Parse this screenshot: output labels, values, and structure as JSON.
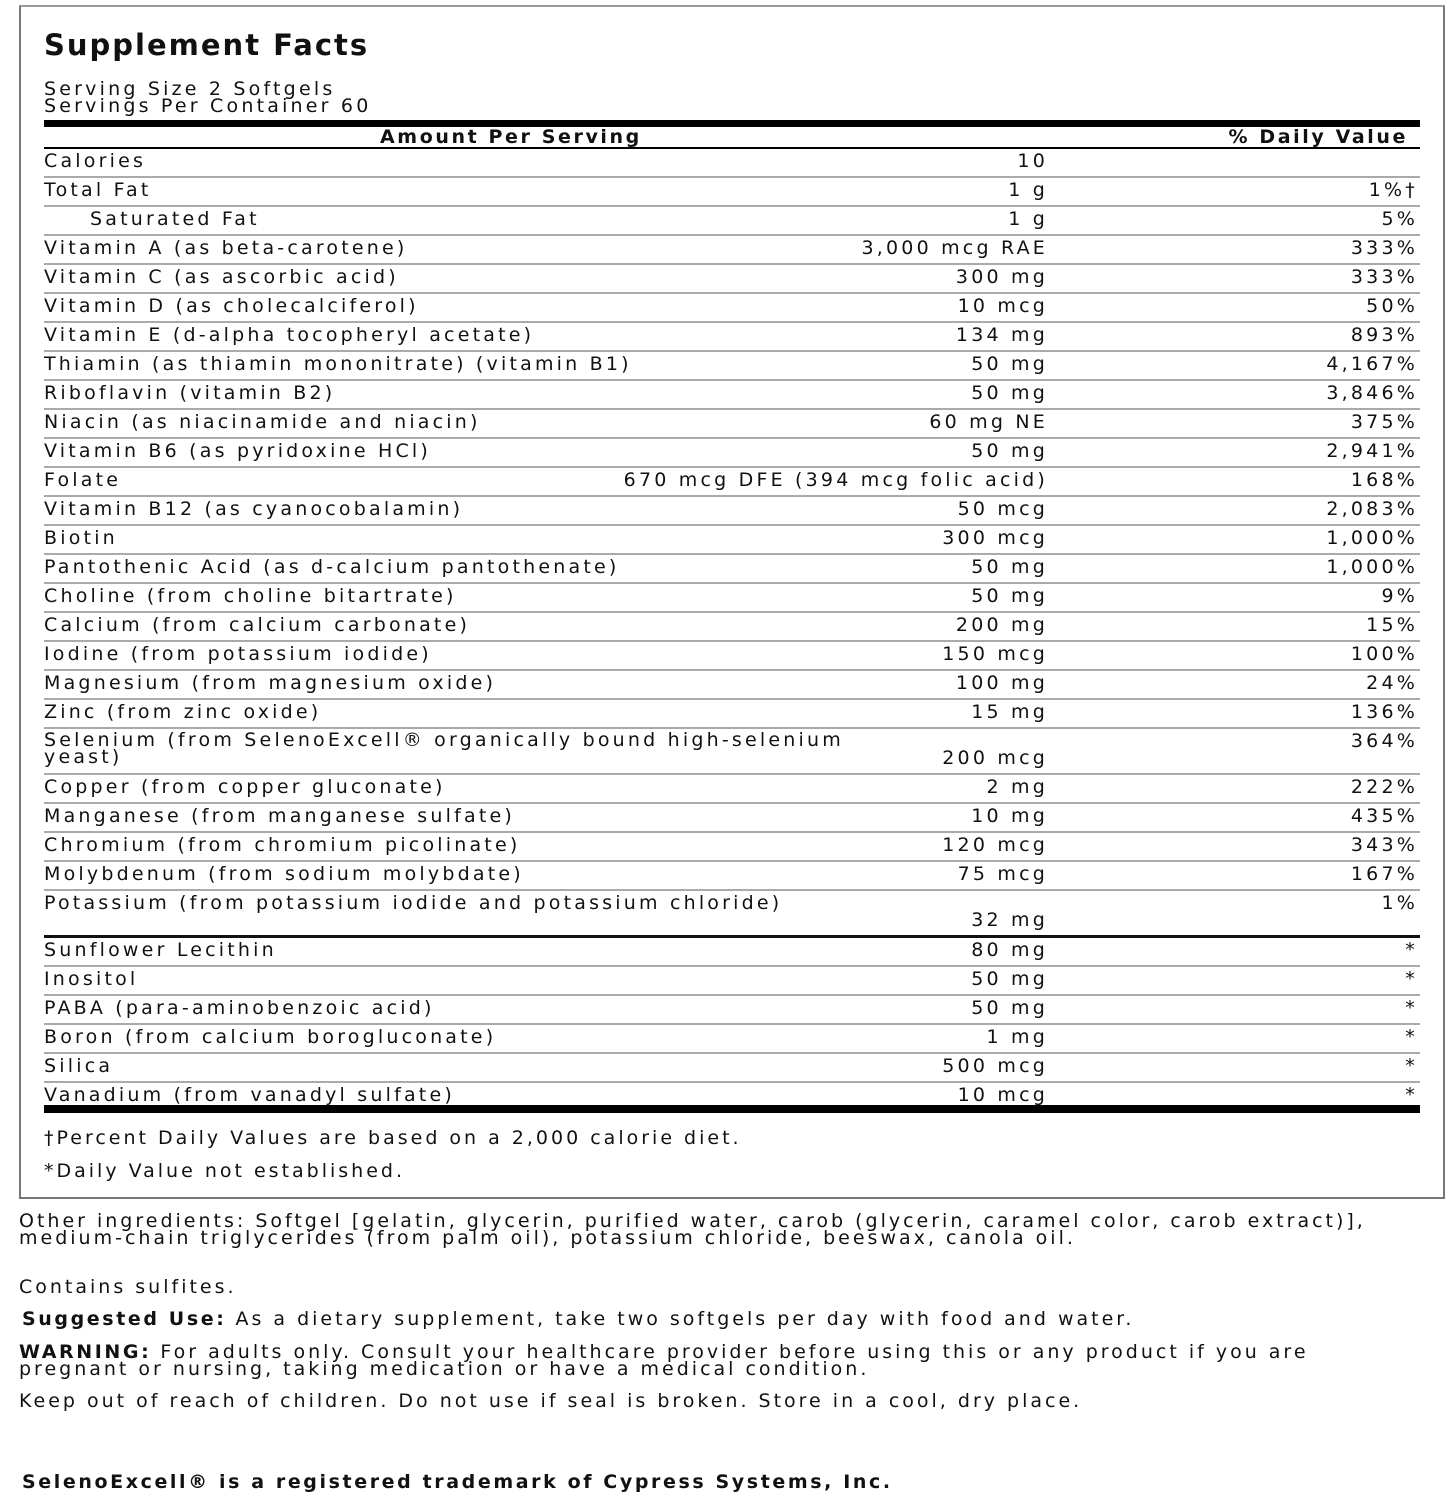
{
  "panel": {
    "title": "Supplement Facts",
    "serving_size": "Serving Size 2 Softgels",
    "servings_per_container": "Servings Per Container 60",
    "header_amount": "Amount Per Serving",
    "header_dv": "% Daily Value"
  },
  "rows": [
    {
      "name": "Calories",
      "amount": "10",
      "dv": ""
    },
    {
      "name": "Total Fat",
      "amount": "1 g",
      "dv": "1%†"
    },
    {
      "name": "Saturated Fat",
      "amount": "1 g",
      "dv": "5%"
    },
    {
      "name": "Vitamin A (as beta-carotene)",
      "amount": "3,000 mcg RAE",
      "dv": "333%"
    },
    {
      "name": "Vitamin C (as ascorbic acid)",
      "amount": "300 mg",
      "dv": "333%"
    },
    {
      "name": "Vitamin D (as cholecalciferol)",
      "amount": "10 mcg",
      "dv": "50%"
    },
    {
      "name": "Vitamin E (d-alpha tocopheryl acetate)",
      "amount": "134 mg",
      "dv": "893%"
    },
    {
      "name": "Thiamin (as thiamin mononitrate) (vitamin B1)",
      "amount": "50 mg",
      "dv": "4,167%"
    },
    {
      "name": "Riboflavin (vitamin B2)",
      "amount": "50 mg",
      "dv": "3,846%"
    },
    {
      "name": "Niacin (as niacinamide and niacin)",
      "amount": "60 mg NE",
      "dv": "375%"
    },
    {
      "name": "Vitamin B6 (as pyridoxine HCl)",
      "amount": "50 mg",
      "dv": "2,941%"
    },
    {
      "name": "Folate",
      "amount": "670 mcg DFE (394 mcg folic acid)",
      "dv": "168%"
    },
    {
      "name": "Vitamin B12 (as cyanocobalamin)",
      "amount": "50 mcg",
      "dv": "2,083%"
    },
    {
      "name": "Biotin",
      "amount": "300 mcg",
      "dv": "1,000%"
    },
    {
      "name": "Pantothenic Acid (as d-calcium pantothenate)",
      "amount": "50 mg",
      "dv": "1,000%"
    },
    {
      "name": "Choline (from choline bitartrate)",
      "amount": "50 mg",
      "dv": "9%"
    },
    {
      "name": "Calcium (from calcium carbonate)",
      "amount": "200 mg",
      "dv": "15%"
    },
    {
      "name": "Iodine (from potassium iodide)",
      "amount": "150 mcg",
      "dv": "100%"
    },
    {
      "name": "Magnesium (from magnesium oxide)",
      "amount": "100 mg",
      "dv": "24%"
    },
    {
      "name": "Zinc (from zinc oxide)",
      "amount": "15 mg",
      "dv": "136%"
    },
    {
      "name": "Selenium (from SelenoExcell® organically bound high-selenium yeast)",
      "amount": "200 mcg",
      "dv": "364%"
    },
    {
      "name": "Copper (from copper gluconate)",
      "amount": "2 mg",
      "dv": "222%"
    },
    {
      "name": "Manganese (from manganese sulfate)",
      "amount": "10 mg",
      "dv": "435%"
    },
    {
      "name": "Chromium (from chromium picolinate)",
      "amount": "120 mcg",
      "dv": "343%"
    },
    {
      "name": "Molybdenum (from sodium molybdate)",
      "amount": "75 mcg",
      "dv": "167%"
    },
    {
      "name": "Potassium (from potassium iodide and potassium chloride)",
      "amount": "32 mg",
      "dv": "1%"
    },
    {
      "name": "Sunflower Lecithin",
      "amount": "80 mg",
      "dv": "*"
    },
    {
      "name": "Inositol",
      "amount": "50 mg",
      "dv": "*"
    },
    {
      "name": "PABA (para-aminobenzoic acid)",
      "amount": "50 mg",
      "dv": "*"
    },
    {
      "name": "Boron (from calcium borogluconate)",
      "amount": "1 mg",
      "dv": "*"
    },
    {
      "name": "Silica",
      "amount": "500 mcg",
      "dv": "*"
    },
    {
      "name": "Vanadium (from vanadyl sulfate)",
      "amount": "10 mcg",
      "dv": "*"
    }
  ],
  "footnotes": {
    "dagger": "†Percent Daily Values are based on a 2,000 calorie diet.",
    "asterisk": "*Daily Value not established."
  },
  "below": {
    "other_ingredients": "Other ingredients: Softgel [gelatin, glycerin, purified water, carob (glycerin, caramel color, carob extract)], medium-chain triglycerides (from palm oil), potassium chloride, beeswax, canola oil.",
    "contains": "Contains sulfites.",
    "suggested_label": "Suggested Use:",
    "suggested_text": " As a dietary supplement, take two softgels per day with food and water.",
    "warning_label": "WARNING:",
    "warning_text": " For adults only. Consult your healthcare provider before using this or any product if you are pregnant or nursing, taking medication or have a medical condition.",
    "keep_out": "Keep out of reach of children. Do not use if seal is broken. Store in a cool, dry place.",
    "trademark": "SelenoExcell® is a registered trademark of Cypress Systems, Inc."
  }
}
